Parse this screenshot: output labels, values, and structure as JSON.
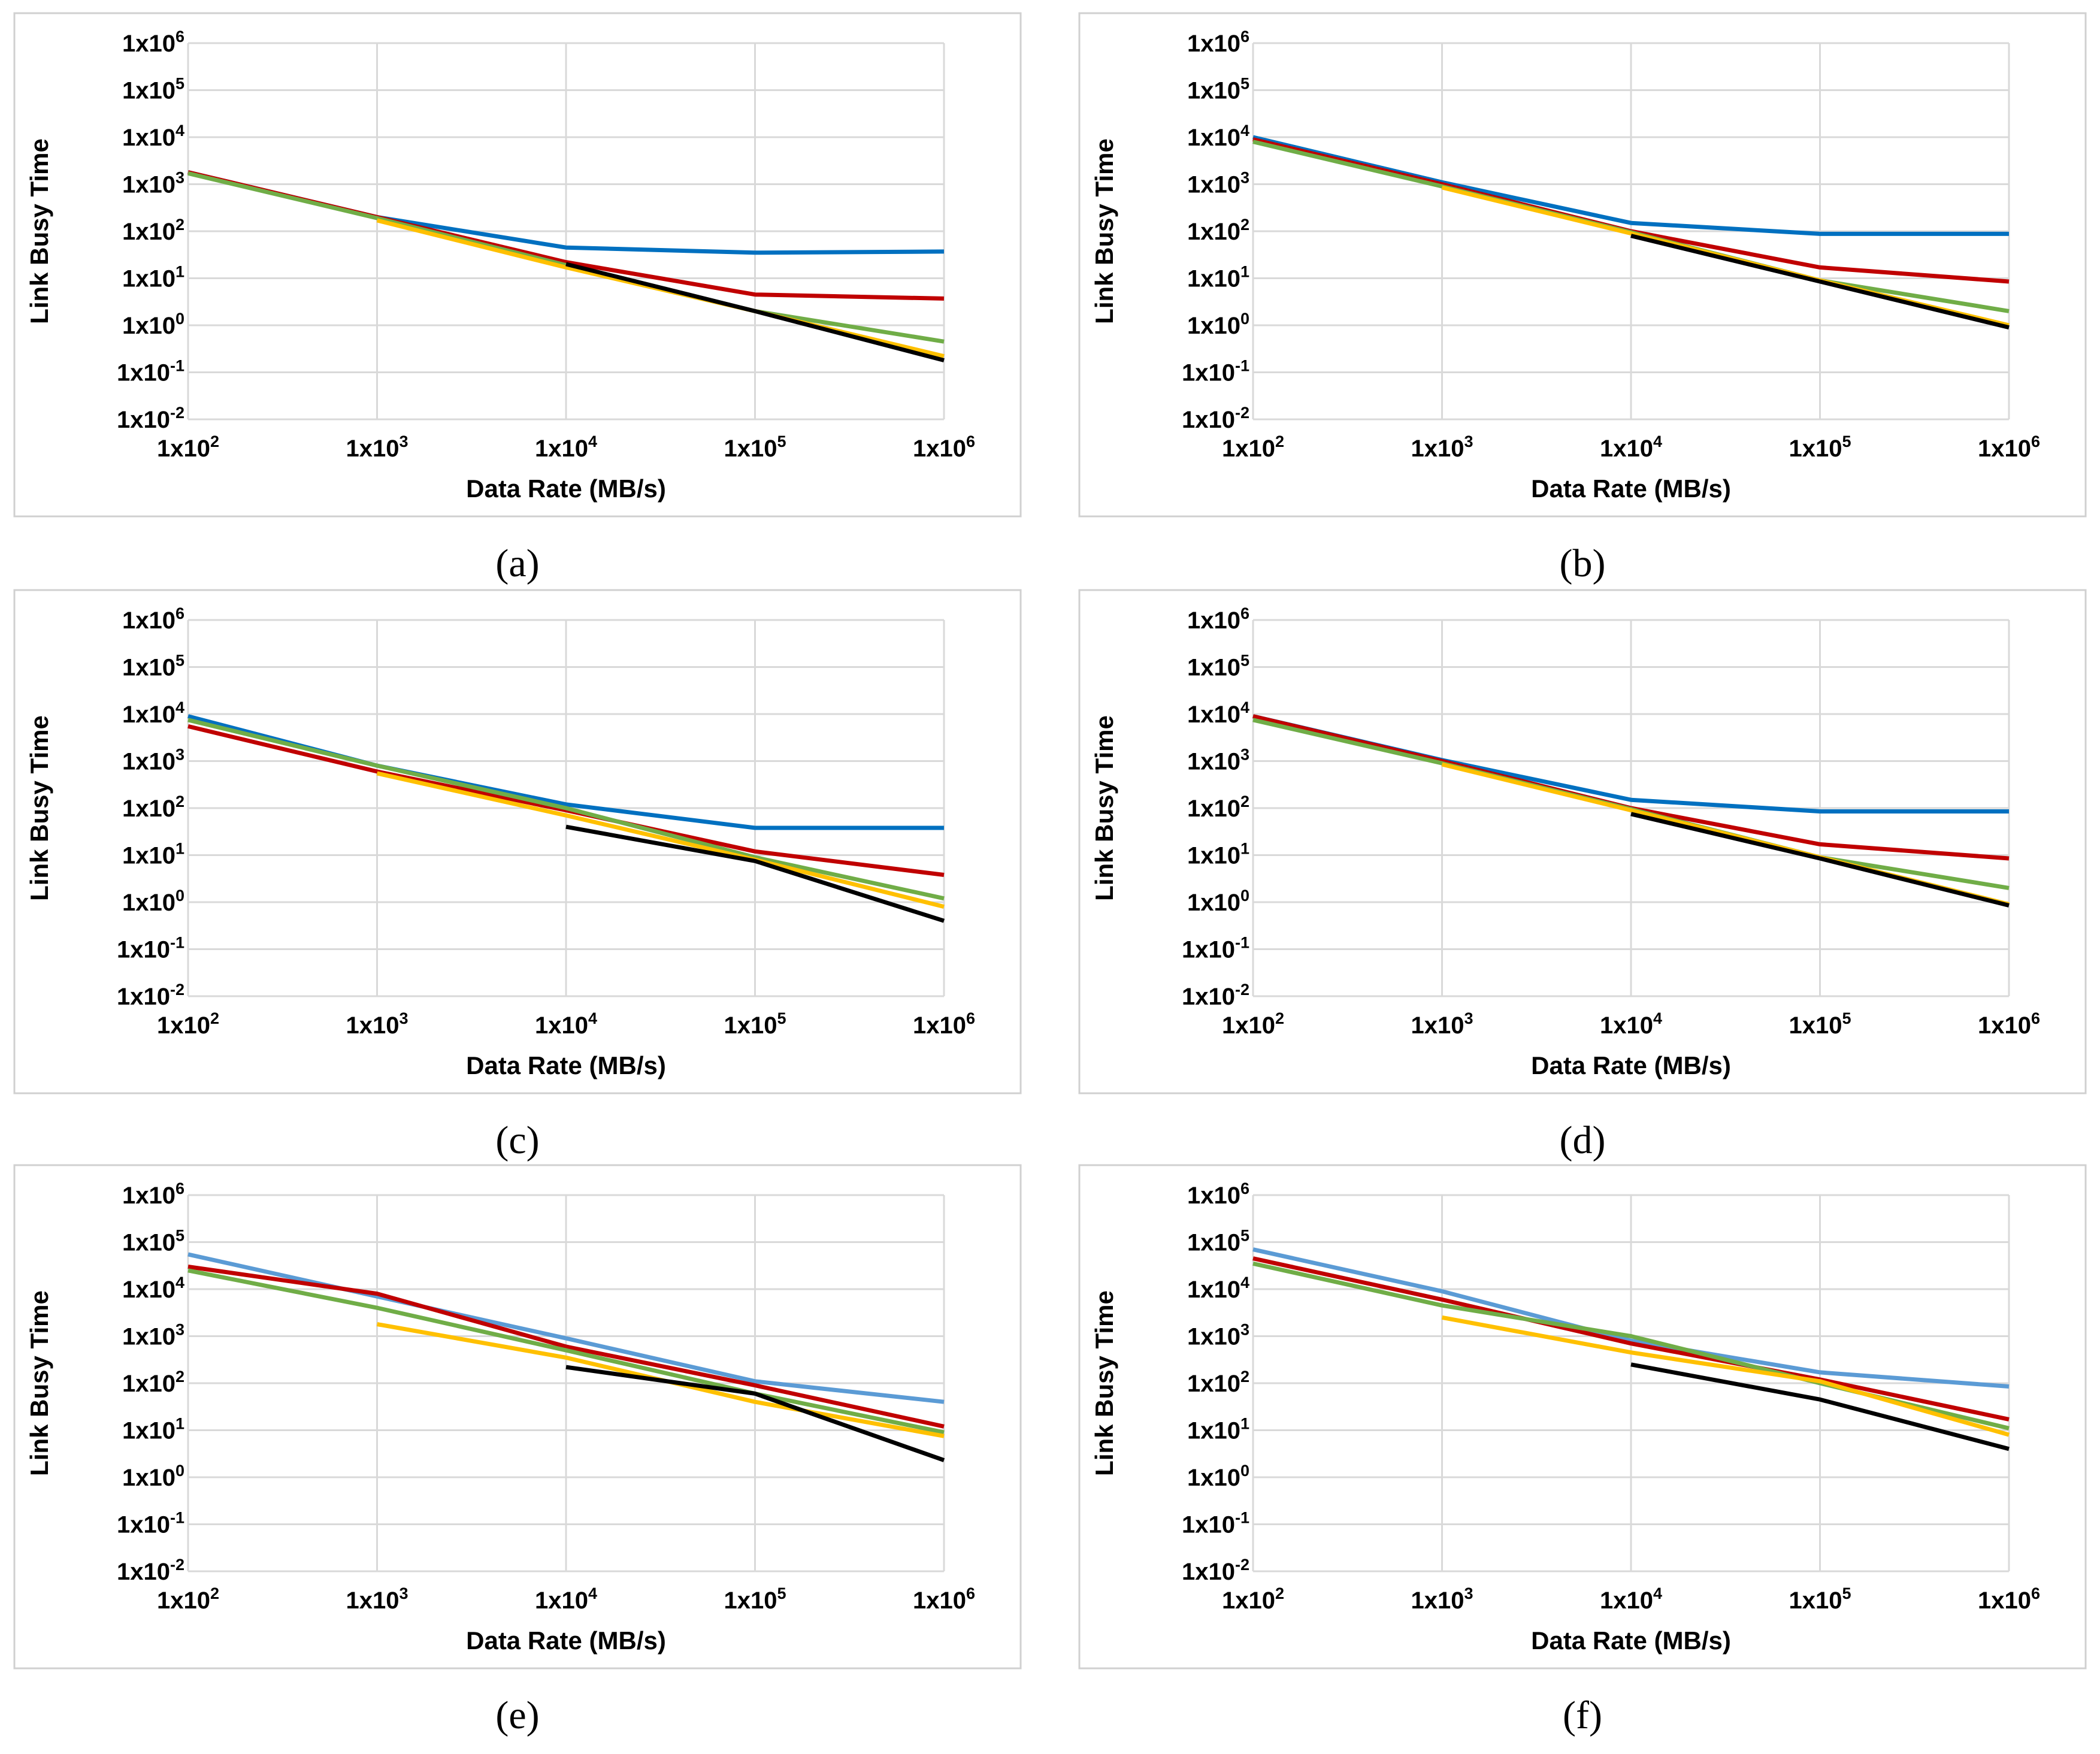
{
  "colors": {
    "blue": "#0070C0",
    "lightblue": "#5B9BD5",
    "red": "#C00000",
    "green": "#70AD47",
    "yellow": "#FFC000",
    "black": "#000000",
    "grid": "#D9D9D9",
    "frame": "#D0D0D0"
  },
  "chart_data": [
    {
      "type": "line",
      "panel_label": "(a)",
      "xlabel": "Data Rate (MB/s)",
      "ylabel": "Link Busy Time",
      "x_scale": "log10",
      "y_scale": "log10",
      "xlim": [
        100,
        1000000
      ],
      "ylim": [
        0.01,
        1000000
      ],
      "x_ticks": [
        [
          "1x10",
          "2"
        ],
        [
          "1x10",
          "3"
        ],
        [
          "1x10",
          "4"
        ],
        [
          "1x10",
          "5"
        ],
        [
          "1x10",
          "6"
        ]
      ],
      "y_ticks": [
        [
          "1x10",
          "-2"
        ],
        [
          "1x10",
          "-1"
        ],
        [
          "1x10",
          "0"
        ],
        [
          "1x10",
          "1"
        ],
        [
          "1x10",
          "2"
        ],
        [
          "1x10",
          "3"
        ],
        [
          "1x10",
          "4"
        ],
        [
          "1x10",
          "5"
        ],
        [
          "1x10",
          "6"
        ]
      ],
      "series": [
        {
          "color": "blue",
          "x": [
            100,
            1000,
            10000,
            100000,
            1000000
          ],
          "y": [
            1800,
            200,
            45,
            35,
            37
          ]
        },
        {
          "color": "red",
          "x": [
            100,
            1000,
            10000,
            100000,
            1000000
          ],
          "y": [
            1800,
            200,
            22,
            4.5,
            3.7
          ]
        },
        {
          "color": "green",
          "x": [
            100,
            1000,
            10000,
            100000,
            1000000
          ],
          "y": [
            1700,
            190,
            19,
            2,
            0.45
          ]
        },
        {
          "color": "yellow",
          "x": [
            1000,
            10000,
            100000,
            1000000
          ],
          "y": [
            170,
            17,
            2,
            0.22
          ]
        },
        {
          "color": "black",
          "x": [
            10000,
            100000,
            1000000
          ],
          "y": [
            20,
            2,
            0.18
          ]
        }
      ]
    },
    {
      "type": "line",
      "panel_label": "(b)",
      "xlabel": "Data Rate (MB/s)",
      "ylabel": "Link Busy Time",
      "x_scale": "log10",
      "y_scale": "log10",
      "xlim": [
        100,
        1000000
      ],
      "ylim": [
        0.01,
        1000000
      ],
      "x_ticks": [
        [
          "1x10",
          "2"
        ],
        [
          "1x10",
          "3"
        ],
        [
          "1x10",
          "4"
        ],
        [
          "1x10",
          "5"
        ],
        [
          "1x10",
          "6"
        ]
      ],
      "y_ticks": [
        [
          "1x10",
          "-2"
        ],
        [
          "1x10",
          "-1"
        ],
        [
          "1x10",
          "0"
        ],
        [
          "1x10",
          "1"
        ],
        [
          "1x10",
          "2"
        ],
        [
          "1x10",
          "3"
        ],
        [
          "1x10",
          "4"
        ],
        [
          "1x10",
          "5"
        ],
        [
          "1x10",
          "6"
        ]
      ],
      "series": [
        {
          "color": "blue",
          "x": [
            100,
            1000,
            10000,
            100000,
            1000000
          ],
          "y": [
            10000,
            1100,
            150,
            88,
            88
          ]
        },
        {
          "color": "red",
          "x": [
            100,
            1000,
            10000,
            100000,
            1000000
          ],
          "y": [
            9000,
            1000,
            100,
            17,
            8.5
          ]
        },
        {
          "color": "green",
          "x": [
            100,
            1000,
            10000,
            100000,
            1000000
          ],
          "y": [
            8000,
            900,
            95,
            9,
            2
          ]
        },
        {
          "color": "yellow",
          "x": [
            1000,
            10000,
            100000,
            1000000
          ],
          "y": [
            850,
            90,
            9,
            1
          ]
        },
        {
          "color": "black",
          "x": [
            10000,
            100000,
            1000000
          ],
          "y": [
            80,
            8.5,
            0.9
          ]
        }
      ]
    },
    {
      "type": "line",
      "panel_label": "(c)",
      "xlabel": "Data Rate (MB/s)",
      "ylabel": "Link Busy Time",
      "x_scale": "log10",
      "y_scale": "log10",
      "xlim": [
        100,
        1000000
      ],
      "ylim": [
        0.01,
        1000000
      ],
      "x_ticks": [
        [
          "1x10",
          "2"
        ],
        [
          "1x10",
          "3"
        ],
        [
          "1x10",
          "4"
        ],
        [
          "1x10",
          "5"
        ],
        [
          "1x10",
          "6"
        ]
      ],
      "y_ticks": [
        [
          "1x10",
          "-2"
        ],
        [
          "1x10",
          "-1"
        ],
        [
          "1x10",
          "0"
        ],
        [
          "1x10",
          "1"
        ],
        [
          "1x10",
          "2"
        ],
        [
          "1x10",
          "3"
        ],
        [
          "1x10",
          "4"
        ],
        [
          "1x10",
          "5"
        ],
        [
          "1x10",
          "6"
        ]
      ],
      "series": [
        {
          "color": "blue",
          "x": [
            100,
            1000,
            10000,
            100000,
            1000000
          ],
          "y": [
            9000,
            800,
            120,
            38,
            38
          ]
        },
        {
          "color": "red",
          "x": [
            100,
            1000,
            10000,
            100000,
            1000000
          ],
          "y": [
            5500,
            600,
            90,
            12,
            3.8
          ]
        },
        {
          "color": "green",
          "x": [
            100,
            1000,
            10000,
            100000,
            1000000
          ],
          "y": [
            7500,
            800,
            100,
            9,
            1.2
          ]
        },
        {
          "color": "yellow",
          "x": [
            1000,
            10000,
            100000,
            1000000
          ],
          "y": [
            550,
            70,
            8,
            0.8
          ]
        },
        {
          "color": "black",
          "x": [
            10000,
            100000,
            1000000
          ],
          "y": [
            40,
            7.5,
            0.4
          ]
        }
      ]
    },
    {
      "type": "line",
      "panel_label": "(d)",
      "xlabel": "Data Rate (MB/s)",
      "ylabel": "Link Busy Time",
      "x_scale": "log10",
      "y_scale": "log10",
      "xlim": [
        100,
        1000000
      ],
      "ylim": [
        0.01,
        1000000
      ],
      "x_ticks": [
        [
          "1x10",
          "2"
        ],
        [
          "1x10",
          "3"
        ],
        [
          "1x10",
          "4"
        ],
        [
          "1x10",
          "5"
        ],
        [
          "1x10",
          "6"
        ]
      ],
      "y_ticks": [
        [
          "1x10",
          "-2"
        ],
        [
          "1x10",
          "-1"
        ],
        [
          "1x10",
          "0"
        ],
        [
          "1x10",
          "1"
        ],
        [
          "1x10",
          "2"
        ],
        [
          "1x10",
          "3"
        ],
        [
          "1x10",
          "4"
        ],
        [
          "1x10",
          "5"
        ],
        [
          "1x10",
          "6"
        ]
      ],
      "series": [
        {
          "color": "blue",
          "x": [
            100,
            1000,
            10000,
            100000,
            1000000
          ],
          "y": [
            9000,
            1050,
            150,
            85,
            85
          ]
        },
        {
          "color": "red",
          "x": [
            100,
            1000,
            10000,
            100000,
            1000000
          ],
          "y": [
            9000,
            1000,
            100,
            17,
            8.5
          ]
        },
        {
          "color": "green",
          "x": [
            100,
            1000,
            10000,
            100000,
            1000000
          ],
          "y": [
            7500,
            900,
            95,
            9,
            2
          ]
        },
        {
          "color": "yellow",
          "x": [
            1000,
            10000,
            100000,
            1000000
          ],
          "y": [
            850,
            90,
            9,
            0.9
          ]
        },
        {
          "color": "black",
          "x": [
            10000,
            100000,
            1000000
          ],
          "y": [
            75,
            8.5,
            0.85
          ]
        }
      ]
    },
    {
      "type": "line",
      "panel_label": "(e)",
      "xlabel": "Data Rate (MB/s)",
      "ylabel": "Link Busy Time",
      "x_scale": "log10",
      "y_scale": "log10",
      "xlim": [
        100,
        1000000
      ],
      "ylim": [
        0.01,
        1000000
      ],
      "x_ticks": [
        [
          "1x10",
          "2"
        ],
        [
          "1x10",
          "3"
        ],
        [
          "1x10",
          "4"
        ],
        [
          "1x10",
          "5"
        ],
        [
          "1x10",
          "6"
        ]
      ],
      "y_ticks": [
        [
          "1x10",
          "-2"
        ],
        [
          "1x10",
          "-1"
        ],
        [
          "1x10",
          "0"
        ],
        [
          "1x10",
          "1"
        ],
        [
          "1x10",
          "2"
        ],
        [
          "1x10",
          "3"
        ],
        [
          "1x10",
          "4"
        ],
        [
          "1x10",
          "5"
        ],
        [
          "1x10",
          "6"
        ]
      ],
      "series": [
        {
          "color": "lightblue",
          "x": [
            100,
            1000,
            10000,
            100000,
            1000000
          ],
          "y": [
            55000,
            7000,
            900,
            110,
            40
          ]
        },
        {
          "color": "red",
          "x": [
            100,
            1000,
            10000,
            100000,
            1000000
          ],
          "y": [
            30000,
            8000,
            600,
            90,
            12
          ]
        },
        {
          "color": "green",
          "x": [
            100,
            1000,
            10000,
            100000,
            1000000
          ],
          "y": [
            25000,
            4000,
            500,
            60,
            9
          ]
        },
        {
          "color": "yellow",
          "x": [
            1000,
            10000,
            100000,
            1000000
          ],
          "y": [
            1800,
            350,
            40,
            7.5
          ]
        },
        {
          "color": "black",
          "x": [
            10000,
            100000,
            1000000
          ],
          "y": [
            220,
            60,
            2.3
          ]
        }
      ]
    },
    {
      "type": "line",
      "panel_label": "(f)",
      "xlabel": "Data Rate (MB/s)",
      "ylabel": "Link Busy Time",
      "x_scale": "log10",
      "y_scale": "log10",
      "xlim": [
        100,
        1000000
      ],
      "ylim": [
        0.01,
        1000000
      ],
      "x_ticks": [
        [
          "1x10",
          "2"
        ],
        [
          "1x10",
          "3"
        ],
        [
          "1x10",
          "4"
        ],
        [
          "1x10",
          "5"
        ],
        [
          "1x10",
          "6"
        ]
      ],
      "y_ticks": [
        [
          "1x10",
          "-2"
        ],
        [
          "1x10",
          "-1"
        ],
        [
          "1x10",
          "0"
        ],
        [
          "1x10",
          "1"
        ],
        [
          "1x10",
          "2"
        ],
        [
          "1x10",
          "3"
        ],
        [
          "1x10",
          "4"
        ],
        [
          "1x10",
          "5"
        ],
        [
          "1x10",
          "6"
        ]
      ],
      "series": [
        {
          "color": "lightblue",
          "x": [
            100,
            1000,
            10000,
            100000,
            1000000
          ],
          "y": [
            70000,
            9000,
            800,
            170,
            85
          ]
        },
        {
          "color": "red",
          "x": [
            100,
            1000,
            10000,
            100000,
            1000000
          ],
          "y": [
            45000,
            6000,
            700,
            120,
            17
          ]
        },
        {
          "color": "green",
          "x": [
            100,
            1000,
            10000,
            100000,
            1000000
          ],
          "y": [
            35000,
            4500,
            1000,
            100,
            11
          ]
        },
        {
          "color": "yellow",
          "x": [
            1000,
            10000,
            100000,
            1000000
          ],
          "y": [
            2500,
            450,
            110,
            8
          ]
        },
        {
          "color": "black",
          "x": [
            10000,
            100000,
            1000000
          ],
          "y": [
            250,
            45,
            4
          ]
        }
      ]
    }
  ]
}
